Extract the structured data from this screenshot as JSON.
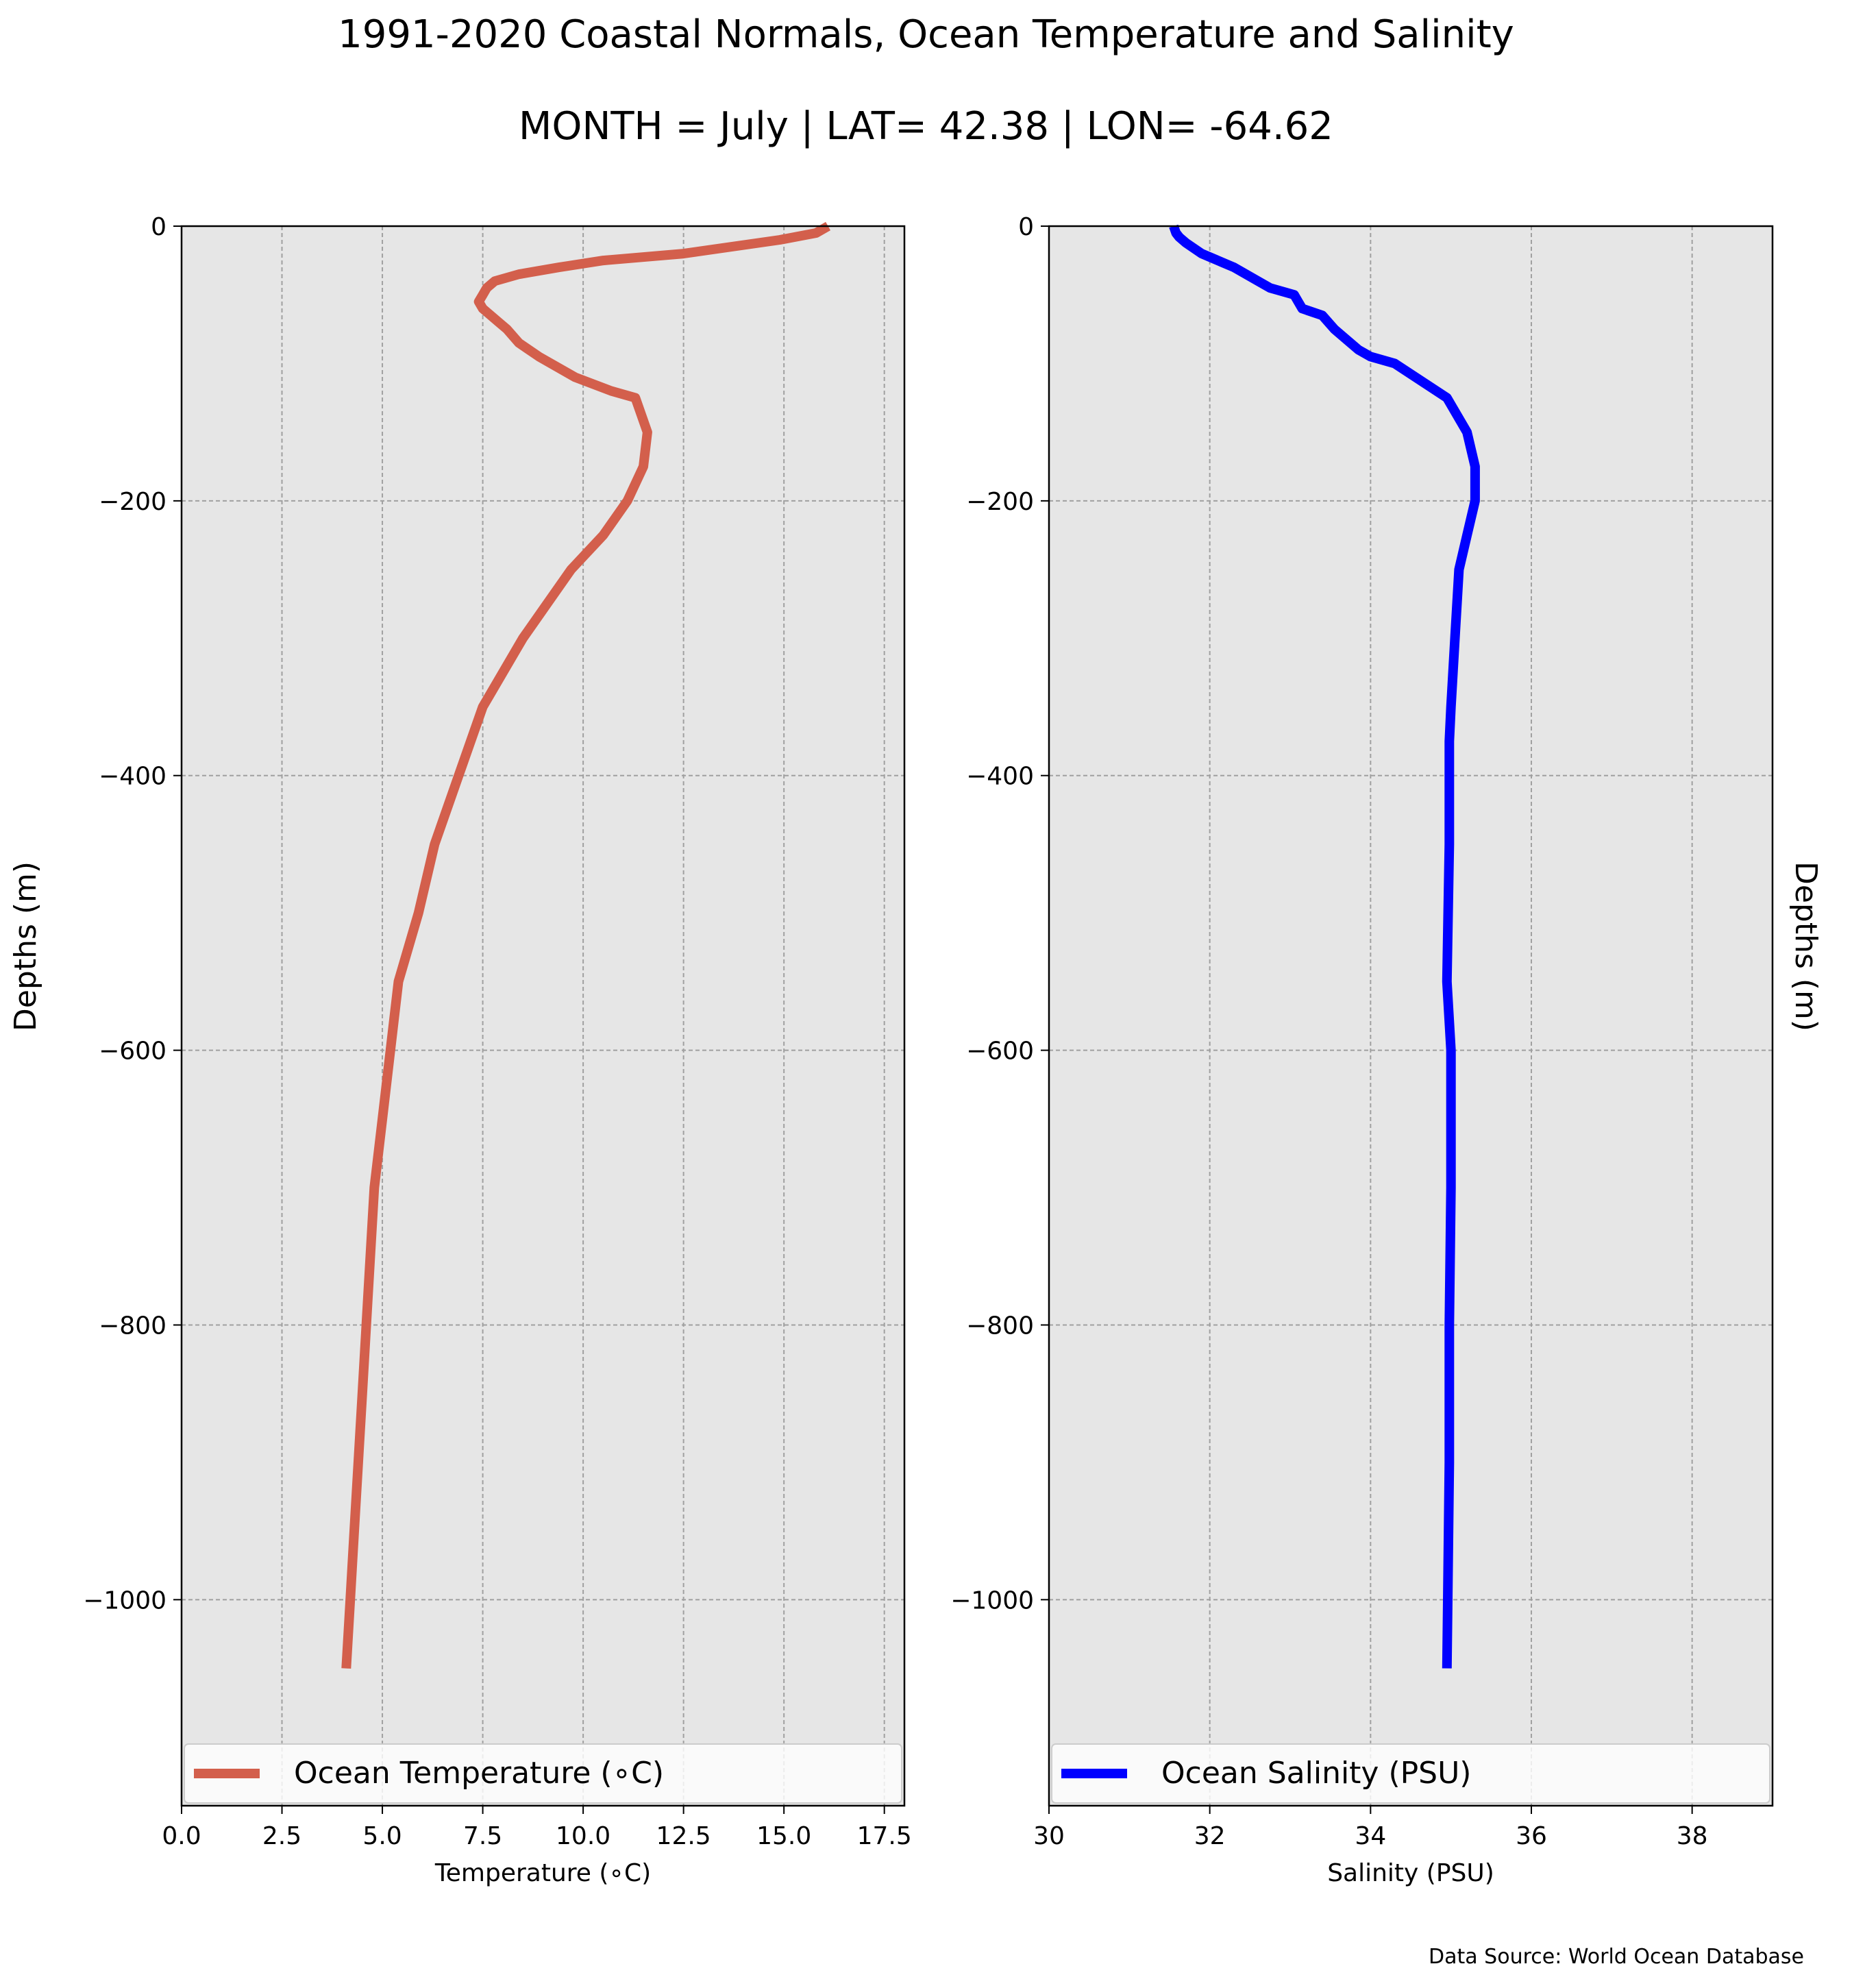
{
  "title": "1991-2020 Coastal Normals, Ocean Temperature and Salinity",
  "subtitle": "MONTH = July | LAT= 42.38 | LON= -64.62",
  "source": "Data Source: World Ocean Database",
  "chart_data": [
    {
      "type": "line",
      "xlabel": "Temperature ($^\\circ$C)",
      "xlabel_display": "Temperature (∘C)",
      "ylabel": "Depths (m)",
      "xlim": [
        0,
        18
      ],
      "ylim": [
        -1150,
        0
      ],
      "xticks": [
        "0.0",
        "2.5",
        "5.0",
        "7.5",
        "10.0",
        "12.5",
        "15.0",
        "17.5"
      ],
      "yticks": [
        "0",
        "−200",
        "−400",
        "−600",
        "−800",
        "−1000"
      ],
      "grid": true,
      "legend_position": "bottom",
      "series": [
        {
          "name": "Ocean Temperature (∘C)",
          "color": "#d35f4c",
          "x": [
            16.1,
            15.8,
            14.9,
            12.5,
            10.5,
            9.4,
            8.4,
            7.8,
            7.6,
            7.5,
            7.4,
            7.5,
            7.7,
            7.9,
            8.1,
            8.4,
            8.9,
            9.8,
            10.7,
            11.3,
            11.6,
            11.5,
            11.1,
            10.5,
            9.7,
            8.5,
            7.5,
            7.2,
            6.9,
            6.3,
            5.9,
            5.4,
            5.2,
            5.0,
            4.8,
            4.6,
            4.5,
            4.4,
            4.3,
            4.2,
            4.1
          ],
          "y": [
            0,
            -5,
            -10,
            -20,
            -25,
            -30,
            -35,
            -40,
            -45,
            -50,
            -55,
            -60,
            -65,
            -70,
            -75,
            -85,
            -95,
            -110,
            -120,
            -125,
            -150,
            -175,
            -200,
            -225,
            -250,
            -300,
            -350,
            -375,
            -400,
            -450,
            -500,
            -550,
            -600,
            -650,
            -700,
            -800,
            -850,
            -900,
            -950,
            -1000,
            -1050
          ]
        }
      ]
    },
    {
      "type": "line",
      "xlabel": "Salinity (PSU)",
      "ylabel": "Depths (m)",
      "xlim": [
        30,
        39
      ],
      "ylim": [
        -1150,
        0
      ],
      "xticks": [
        "30",
        "32",
        "34",
        "36",
        "38"
      ],
      "yticks": [
        "0",
        "−200",
        "−400",
        "−600",
        "−800",
        "−1000"
      ],
      "grid": true,
      "legend_position": "bottom",
      "series": [
        {
          "name": "Ocean Salinity (PSU)",
          "color": "#0000ff",
          "x": [
            31.55,
            31.58,
            31.62,
            31.7,
            31.9,
            32.3,
            32.6,
            32.75,
            33.05,
            33.1,
            33.15,
            33.4,
            33.55,
            33.75,
            33.85,
            34.0,
            34.3,
            34.95,
            35.2,
            35.3,
            35.3,
            35.2,
            35.1,
            35.05,
            35.0,
            34.98,
            34.98,
            34.98,
            34.95,
            35.0,
            35.0,
            34.98,
            34.98,
            34.98,
            34.96,
            34.95
          ],
          "y": [
            0,
            -5,
            -8,
            -12,
            -20,
            -30,
            -40,
            -45,
            -50,
            -55,
            -60,
            -65,
            -75,
            -85,
            -90,
            -95,
            -100,
            -125,
            -150,
            -175,
            -200,
            -225,
            -250,
            -300,
            -350,
            -375,
            -400,
            -450,
            -550,
            -600,
            -700,
            -800,
            -850,
            -900,
            -1000,
            -1050
          ]
        }
      ]
    }
  ]
}
